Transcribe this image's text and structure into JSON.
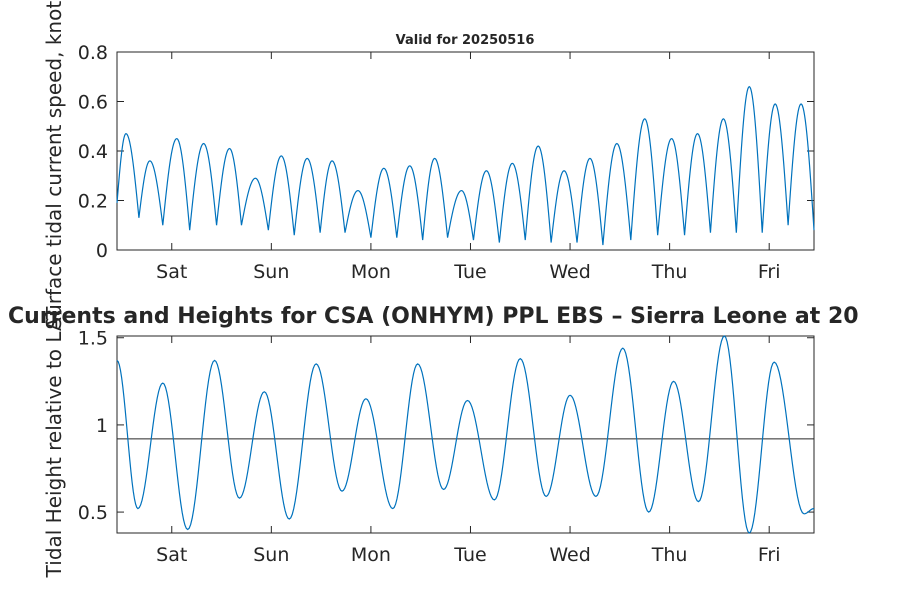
{
  "chart_data": [
    {
      "type": "line",
      "title": "Valid for 20250516",
      "ylabel": "Surface tidal current speed, knots",
      "xlim": [
        0,
        7
      ],
      "ylim": [
        0,
        0.8
      ],
      "yticks": [
        0,
        0.2,
        0.4,
        0.6,
        0.8
      ],
      "yticklabels": [
        "0",
        "0.2",
        "0.4",
        "0.6",
        "0.8"
      ],
      "xtick_positions": [
        0.55,
        1.55,
        2.55,
        3.55,
        4.55,
        5.55,
        6.55
      ],
      "xticklabels": [
        "Sat",
        "Sun",
        "Mon",
        "Tue",
        "Wed",
        "Thu",
        "Fri"
      ],
      "color": "#0072BD",
      "series": [
        {
          "peaks": [
            [
              0.09,
              0.47
            ],
            [
              0.33,
              0.36
            ],
            [
              0.6,
              0.45
            ],
            [
              0.87,
              0.43
            ],
            [
              1.13,
              0.41
            ],
            [
              1.39,
              0.29
            ],
            [
              1.65,
              0.38
            ],
            [
              1.91,
              0.37
            ],
            [
              2.16,
              0.36
            ],
            [
              2.42,
              0.24
            ],
            [
              2.68,
              0.33
            ],
            [
              2.94,
              0.34
            ],
            [
              3.19,
              0.37
            ],
            [
              3.46,
              0.24
            ],
            [
              3.71,
              0.32
            ],
            [
              3.97,
              0.35
            ],
            [
              4.23,
              0.42
            ],
            [
              4.49,
              0.32
            ],
            [
              4.75,
              0.37
            ],
            [
              5.02,
              0.43
            ],
            [
              5.3,
              0.53
            ],
            [
              5.57,
              0.45
            ],
            [
              5.83,
              0.47
            ],
            [
              6.09,
              0.53
            ],
            [
              6.35,
              0.66
            ],
            [
              6.61,
              0.59
            ],
            [
              6.87,
              0.59
            ]
          ],
          "troughs": [
            [
              0.0,
              0.19
            ],
            [
              0.22,
              0.13
            ],
            [
              0.46,
              0.1
            ],
            [
              0.73,
              0.08
            ],
            [
              1.0,
              0.1
            ],
            [
              1.25,
              0.1
            ],
            [
              1.52,
              0.08
            ],
            [
              1.78,
              0.06
            ],
            [
              2.04,
              0.07
            ],
            [
              2.29,
              0.07
            ],
            [
              2.55,
              0.05
            ],
            [
              2.81,
              0.05
            ],
            [
              3.07,
              0.04
            ],
            [
              3.32,
              0.05
            ],
            [
              3.58,
              0.04
            ],
            [
              3.84,
              0.03
            ],
            [
              4.1,
              0.04
            ],
            [
              4.36,
              0.03
            ],
            [
              4.62,
              0.03
            ],
            [
              4.88,
              0.02
            ],
            [
              5.16,
              0.04
            ],
            [
              5.43,
              0.06
            ],
            [
              5.7,
              0.06
            ],
            [
              5.96,
              0.07
            ],
            [
              6.22,
              0.07
            ],
            [
              6.48,
              0.07
            ],
            [
              6.74,
              0.1
            ],
            [
              7.0,
              0.08
            ]
          ]
        }
      ]
    },
    {
      "type": "line",
      "title": "Currents and Heights for CSA (ONHYM) PPL EBS  – Sierra Leone at 20",
      "ylabel": "Tidal Height relative to LAT",
      "xlim": [
        0,
        7
      ],
      "ylim": [
        0.38,
        1.51
      ],
      "yticks": [
        0.5,
        1,
        1.5
      ],
      "yticklabels": [
        "0.5",
        "1",
        "1.5"
      ],
      "xtick_positions": [
        0.55,
        1.55,
        2.55,
        3.55,
        4.55,
        5.55,
        6.55
      ],
      "xticklabels": [
        "Sat",
        "Sun",
        "Mon",
        "Tue",
        "Wed",
        "Thu",
        "Fri"
      ],
      "color": "#0072BD",
      "reference_line": 0.92,
      "reference_color": "#262626",
      "series": [
        {
          "extrema": [
            [
              0.0,
              1.37
            ],
            [
              0.21,
              0.52
            ],
            [
              0.46,
              1.24
            ],
            [
              0.71,
              0.4
            ],
            [
              0.98,
              1.37
            ],
            [
              1.23,
              0.58
            ],
            [
              1.48,
              1.19
            ],
            [
              1.73,
              0.46
            ],
            [
              2.0,
              1.35
            ],
            [
              2.26,
              0.62
            ],
            [
              2.5,
              1.15
            ],
            [
              2.77,
              0.52
            ],
            [
              3.02,
              1.35
            ],
            [
              3.28,
              0.63
            ],
            [
              3.52,
              1.14
            ],
            [
              3.79,
              0.57
            ],
            [
              4.05,
              1.38
            ],
            [
              4.31,
              0.59
            ],
            [
              4.55,
              1.17
            ],
            [
              4.81,
              0.59
            ],
            [
              5.08,
              1.44
            ],
            [
              5.34,
              0.5
            ],
            [
              5.59,
              1.25
            ],
            [
              5.84,
              0.56
            ],
            [
              6.1,
              1.51
            ],
            [
              6.35,
              0.38
            ],
            [
              6.6,
              1.36
            ],
            [
              6.9,
              0.49
            ],
            [
              7.0,
              0.52
            ]
          ]
        }
      ]
    }
  ]
}
